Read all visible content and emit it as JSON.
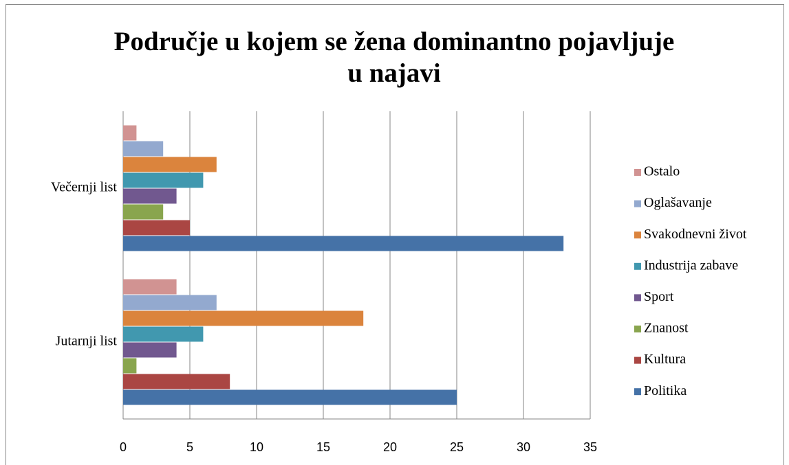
{
  "chart_data": {
    "type": "hbar",
    "title": [
      "Područje u kojem se žena dominantno pojavljuje",
      "u najavi"
    ],
    "categories": [
      "Jutarnji list",
      "Večernji list"
    ],
    "series": [
      {
        "name": "Politika",
        "color": "#4572a7",
        "values": [
          25,
          33
        ]
      },
      {
        "name": "Kultura",
        "color": "#aa4643",
        "values": [
          8,
          5
        ]
      },
      {
        "name": "Znanost",
        "color": "#89a54e",
        "values": [
          1,
          3
        ]
      },
      {
        "name": "Sport",
        "color": "#71588f",
        "values": [
          4,
          4
        ]
      },
      {
        "name": "Industrija zabave",
        "color": "#4198af",
        "values": [
          6,
          6
        ]
      },
      {
        "name": "Svakodnevni život",
        "color": "#db843d",
        "values": [
          18,
          7
        ]
      },
      {
        "name": "Oglašavanje",
        "color": "#93a9cf",
        "values": [
          7,
          3
        ]
      },
      {
        "name": "Ostalo",
        "color": "#d19392",
        "values": [
          4,
          1
        ]
      }
    ],
    "xlim": [
      0,
      35
    ],
    "xticks": [
      0,
      5,
      10,
      15,
      20,
      25,
      30,
      35
    ],
    "grid": true,
    "legend": "right"
  }
}
